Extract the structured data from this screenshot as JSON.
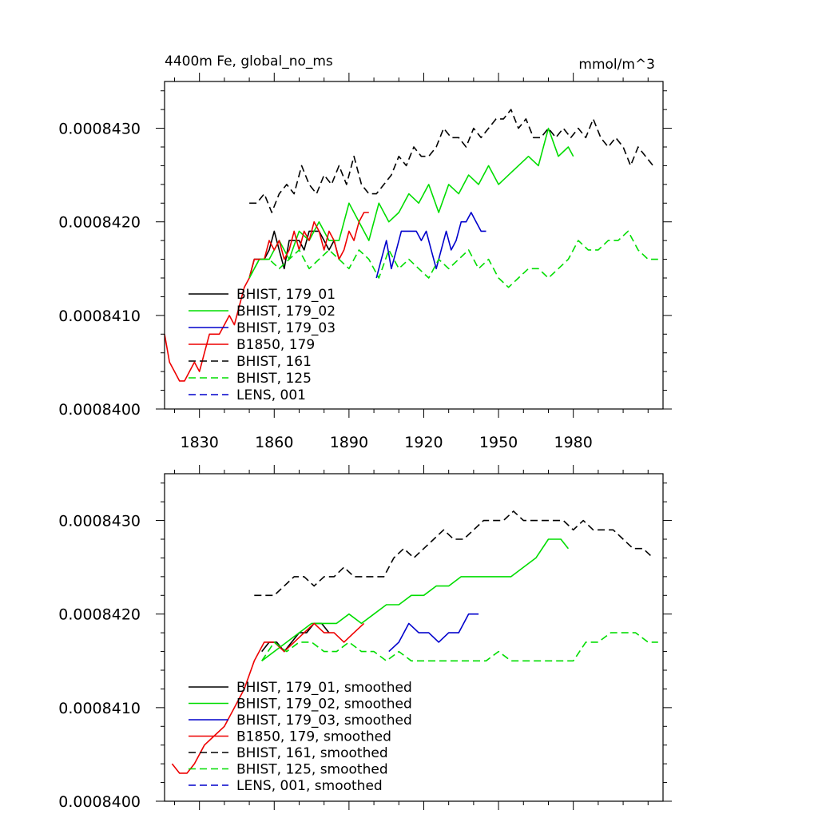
{
  "chart_data": [
    {
      "type": "line",
      "title": "4400m Fe, global_no_ms",
      "units": "mmol/m^3",
      "xlim": [
        1816,
        2016
      ],
      "ylim": [
        0.00084,
        0.0008435
      ],
      "xticks": [
        1830,
        1860,
        1890,
        1920,
        1950,
        1980
      ],
      "xtick_labels": [
        "1830",
        "1860",
        "1890",
        "1920",
        "1950",
        "1980"
      ],
      "yticks": [
        0.00084,
        0.000841,
        0.000842,
        0.000843
      ],
      "ytick_labels": [
        "0.0008400",
        "0.0008410",
        "0.0008420",
        "0.0008430"
      ],
      "series": [
        {
          "name": "BHIST, 179_01",
          "color": "#000000",
          "dash": "solid",
          "x": [
            1850,
            1852,
            1854,
            1856,
            1858,
            1860,
            1862,
            1864,
            1866,
            1868,
            1870,
            1872,
            1874,
            1876,
            1878,
            1880,
            1882,
            1884,
            1886
          ],
          "y": [
            0.0008414,
            0.0008416,
            0.0008416,
            0.0008416,
            0.0008417,
            0.0008419,
            0.0008417,
            0.0008415,
            0.0008418,
            0.0008418,
            0.0008418,
            0.0008417,
            0.0008419,
            0.0008419,
            0.0008419,
            0.0008418,
            0.0008417,
            0.0008418,
            0.0008416
          ]
        },
        {
          "name": "BHIST, 179_02",
          "color": "#00dd00",
          "dash": "solid",
          "x": [
            1850,
            1854,
            1858,
            1862,
            1866,
            1870,
            1874,
            1878,
            1882,
            1886,
            1890,
            1894,
            1898,
            1902,
            1906,
            1910,
            1914,
            1918,
            1922,
            1926,
            1930,
            1934,
            1938,
            1942,
            1946,
            1950,
            1954,
            1958,
            1962,
            1966,
            1970,
            1974,
            1978,
            1980
          ],
          "y": [
            0.0008414,
            0.0008416,
            0.0008416,
            0.0008418,
            0.0008416,
            0.0008419,
            0.0008418,
            0.000842,
            0.0008418,
            0.0008418,
            0.0008422,
            0.000842,
            0.0008418,
            0.0008422,
            0.000842,
            0.0008421,
            0.0008423,
            0.0008422,
            0.0008424,
            0.0008421,
            0.0008424,
            0.0008423,
            0.0008425,
            0.0008424,
            0.0008426,
            0.0008424,
            0.0008425,
            0.0008426,
            0.0008427,
            0.0008426,
            0.000843,
            0.0008427,
            0.0008428,
            0.0008427
          ]
        },
        {
          "name": "BHIST, 179_03",
          "color": "#0000cc",
          "dash": "solid",
          "x": [
            1901,
            1903,
            1905,
            1907,
            1909,
            1911,
            1913,
            1915,
            1917,
            1919,
            1921,
            1923,
            1925,
            1927,
            1929,
            1931,
            1933,
            1935,
            1937,
            1939,
            1941,
            1943,
            1945
          ],
          "y": [
            0.0008414,
            0.0008416,
            0.0008418,
            0.0008415,
            0.0008417,
            0.0008419,
            0.0008419,
            0.0008419,
            0.0008419,
            0.0008418,
            0.0008419,
            0.0008417,
            0.0008415,
            0.0008417,
            0.0008419,
            0.0008417,
            0.0008418,
            0.000842,
            0.000842,
            0.0008421,
            0.000842,
            0.0008419,
            0.0008419
          ]
        },
        {
          "name": "B1850, 179",
          "color": "#ee0000",
          "dash": "solid",
          "x": [
            1816,
            1818,
            1820,
            1822,
            1824,
            1826,
            1828,
            1830,
            1832,
            1834,
            1836,
            1838,
            1840,
            1842,
            1844,
            1846,
            1848,
            1850,
            1852,
            1854,
            1856,
            1858,
            1860,
            1862,
            1864,
            1866,
            1868,
            1870,
            1872,
            1874,
            1876,
            1878,
            1880,
            1882,
            1884,
            1886,
            1888,
            1890,
            1892,
            1894,
            1896,
            1898
          ],
          "y": [
            0.0008408,
            0.0008405,
            0.0008404,
            0.0008403,
            0.0008403,
            0.0008404,
            0.0008405,
            0.0008404,
            0.0008406,
            0.0008408,
            0.0008408,
            0.0008408,
            0.0008409,
            0.000841,
            0.0008409,
            0.0008411,
            0.0008413,
            0.0008414,
            0.0008416,
            0.0008416,
            0.0008416,
            0.0008418,
            0.0008417,
            0.0008418,
            0.0008416,
            0.0008417,
            0.0008419,
            0.0008417,
            0.0008419,
            0.0008418,
            0.000842,
            0.0008419,
            0.0008417,
            0.0008419,
            0.0008418,
            0.0008416,
            0.0008417,
            0.0008419,
            0.0008418,
            0.000842,
            0.0008421,
            0.0008421
          ]
        },
        {
          "name": "BHIST, 161",
          "color": "#000000",
          "dash": "dashed",
          "x": [
            1850,
            1853,
            1856,
            1859,
            1862,
            1865,
            1868,
            1871,
            1874,
            1877,
            1880,
            1883,
            1886,
            1889,
            1892,
            1895,
            1898,
            1901,
            1904,
            1907,
            1910,
            1913,
            1916,
            1919,
            1922,
            1925,
            1928,
            1931,
            1934,
            1937,
            1940,
            1943,
            1946,
            1949,
            1952,
            1955,
            1958,
            1961,
            1964,
            1967,
            1970,
            1973,
            1976,
            1979,
            1982,
            1985,
            1988,
            1991,
            1994,
            1997,
            2000,
            2003,
            2006,
            2009,
            2012
          ],
          "y": [
            0.0008422,
            0.0008422,
            0.0008423,
            0.0008421,
            0.0008423,
            0.0008424,
            0.0008423,
            0.0008426,
            0.0008424,
            0.0008423,
            0.0008425,
            0.0008424,
            0.0008426,
            0.0008424,
            0.0008427,
            0.0008424,
            0.0008423,
            0.0008423,
            0.0008424,
            0.0008425,
            0.0008427,
            0.0008426,
            0.0008428,
            0.0008427,
            0.0008427,
            0.0008428,
            0.000843,
            0.0008429,
            0.0008429,
            0.0008428,
            0.000843,
            0.0008429,
            0.000843,
            0.0008431,
            0.0008431,
            0.0008432,
            0.000843,
            0.0008431,
            0.0008429,
            0.0008429,
            0.000843,
            0.0008429,
            0.000843,
            0.0008429,
            0.000843,
            0.0008429,
            0.0008431,
            0.0008429,
            0.0008428,
            0.0008429,
            0.0008428,
            0.0008426,
            0.0008428,
            0.0008427,
            0.0008426
          ]
        },
        {
          "name": "BHIST, 125",
          "color": "#00dd00",
          "dash": "dashed",
          "x": [
            1850,
            1854,
            1858,
            1862,
            1866,
            1870,
            1874,
            1878,
            1882,
            1886,
            1890,
            1894,
            1898,
            1902,
            1906,
            1910,
            1914,
            1918,
            1922,
            1926,
            1930,
            1934,
            1938,
            1942,
            1946,
            1950,
            1954,
            1958,
            1962,
            1966,
            1970,
            1974,
            1978,
            1982,
            1986,
            1990,
            1994,
            1998,
            2002,
            2006,
            2010,
            2014
          ],
          "y": [
            0.0008414,
            0.0008416,
            0.0008416,
            0.0008415,
            0.0008416,
            0.0008417,
            0.0008415,
            0.0008416,
            0.0008417,
            0.0008416,
            0.0008415,
            0.0008417,
            0.0008416,
            0.0008414,
            0.0008417,
            0.0008415,
            0.0008416,
            0.0008415,
            0.0008414,
            0.0008416,
            0.0008415,
            0.0008416,
            0.0008417,
            0.0008415,
            0.0008416,
            0.0008414,
            0.0008413,
            0.0008414,
            0.0008415,
            0.0008415,
            0.0008414,
            0.0008415,
            0.0008416,
            0.0008418,
            0.0008417,
            0.0008417,
            0.0008418,
            0.0008418,
            0.0008419,
            0.0008417,
            0.0008416,
            0.0008416
          ]
        }
      ],
      "legend_extra": [
        {
          "name": "LENS, 001",
          "color": "#0000cc",
          "dash": "dashed"
        }
      ]
    },
    {
      "type": "line",
      "title": "",
      "units": "",
      "xlim": [
        1816,
        2016
      ],
      "ylim": [
        0.00084,
        0.0008435
      ],
      "xticks": [
        1830,
        1860,
        1890,
        1920,
        1950,
        1980
      ],
      "xtick_labels": [],
      "yticks": [
        0.00084,
        0.000841,
        0.000842,
        0.000843
      ],
      "ytick_labels": [
        "0.0008400",
        "0.0008410",
        "0.0008420",
        "0.0008430"
      ],
      "series": [
        {
          "name": "BHIST, 179_01, smoothed",
          "color": "#000000",
          "dash": "solid",
          "x": [
            1855,
            1858,
            1861,
            1864,
            1867,
            1870,
            1873,
            1876,
            1879,
            1882
          ],
          "y": [
            0.0008416,
            0.0008417,
            0.0008417,
            0.0008416,
            0.0008417,
            0.0008418,
            0.0008418,
            0.0008419,
            0.0008419,
            0.0008418
          ]
        },
        {
          "name": "BHIST, 179_02, smoothed",
          "color": "#00dd00",
          "dash": "solid",
          "x": [
            1855,
            1860,
            1865,
            1870,
            1875,
            1880,
            1885,
            1890,
            1895,
            1900,
            1905,
            1910,
            1915,
            1920,
            1925,
            1930,
            1935,
            1940,
            1945,
            1950,
            1955,
            1960,
            1965,
            1970,
            1975,
            1978
          ],
          "y": [
            0.0008415,
            0.0008416,
            0.0008417,
            0.0008418,
            0.0008419,
            0.0008419,
            0.0008419,
            0.000842,
            0.0008419,
            0.000842,
            0.0008421,
            0.0008421,
            0.0008422,
            0.0008422,
            0.0008423,
            0.0008423,
            0.0008424,
            0.0008424,
            0.0008424,
            0.0008424,
            0.0008424,
            0.0008425,
            0.0008426,
            0.0008428,
            0.0008428,
            0.0008427
          ]
        },
        {
          "name": "BHIST, 179_03, smoothed",
          "color": "#0000cc",
          "dash": "solid",
          "x": [
            1906,
            1910,
            1914,
            1918,
            1922,
            1926,
            1930,
            1934,
            1938,
            1942
          ],
          "y": [
            0.0008416,
            0.0008417,
            0.0008419,
            0.0008418,
            0.0008418,
            0.0008417,
            0.0008418,
            0.0008418,
            0.000842,
            0.000842
          ]
        },
        {
          "name": "B1850, 179, smoothed",
          "color": "#ee0000",
          "dash": "solid",
          "x": [
            1819,
            1822,
            1825,
            1828,
            1832,
            1836,
            1840,
            1844,
            1848,
            1852,
            1856,
            1860,
            1864,
            1868,
            1872,
            1876,
            1880,
            1884,
            1888,
            1892,
            1896
          ],
          "y": [
            0.0008404,
            0.0008403,
            0.0008403,
            0.0008404,
            0.0008406,
            0.0008407,
            0.0008408,
            0.000841,
            0.0008412,
            0.0008415,
            0.0008417,
            0.0008417,
            0.0008416,
            0.0008417,
            0.0008418,
            0.0008419,
            0.0008418,
            0.0008418,
            0.0008417,
            0.0008418,
            0.0008419
          ]
        },
        {
          "name": "BHIST, 161, smoothed",
          "color": "#000000",
          "dash": "dashed",
          "x": [
            1852,
            1856,
            1860,
            1864,
            1868,
            1872,
            1876,
            1880,
            1884,
            1888,
            1892,
            1896,
            1900,
            1904,
            1908,
            1912,
            1916,
            1920,
            1924,
            1928,
            1932,
            1936,
            1940,
            1944,
            1948,
            1952,
            1956,
            1960,
            1964,
            1968,
            1972,
            1976,
            1980,
            1984,
            1988,
            1992,
            1996,
            2000,
            2004,
            2008,
            2012
          ],
          "y": [
            0.0008422,
            0.0008422,
            0.0008422,
            0.0008423,
            0.0008424,
            0.0008424,
            0.0008423,
            0.0008424,
            0.0008424,
            0.0008425,
            0.0008424,
            0.0008424,
            0.0008424,
            0.0008424,
            0.0008426,
            0.0008427,
            0.0008426,
            0.0008427,
            0.0008428,
            0.0008429,
            0.0008428,
            0.0008428,
            0.0008429,
            0.000843,
            0.000843,
            0.000843,
            0.0008431,
            0.000843,
            0.000843,
            0.000843,
            0.000843,
            0.000843,
            0.0008429,
            0.000843,
            0.0008429,
            0.0008429,
            0.0008429,
            0.0008428,
            0.0008427,
            0.0008427,
            0.0008426
          ]
        },
        {
          "name": "BHIST, 125, smoothed",
          "color": "#00dd00",
          "dash": "dashed",
          "x": [
            1855,
            1860,
            1865,
            1870,
            1875,
            1880,
            1885,
            1890,
            1895,
            1900,
            1905,
            1910,
            1915,
            1920,
            1925,
            1930,
            1935,
            1940,
            1945,
            1950,
            1955,
            1960,
            1965,
            1970,
            1975,
            1980,
            1985,
            1990,
            1995,
            2000,
            2005,
            2010,
            2014
          ],
          "y": [
            0.0008415,
            0.0008417,
            0.0008416,
            0.0008417,
            0.0008417,
            0.0008416,
            0.0008416,
            0.0008417,
            0.0008416,
            0.0008416,
            0.0008415,
            0.0008416,
            0.0008415,
            0.0008415,
            0.0008415,
            0.0008415,
            0.0008415,
            0.0008415,
            0.0008415,
            0.0008416,
            0.0008415,
            0.0008415,
            0.0008415,
            0.0008415,
            0.0008415,
            0.0008415,
            0.0008417,
            0.0008417,
            0.0008418,
            0.0008418,
            0.0008418,
            0.0008417,
            0.0008417
          ]
        }
      ],
      "legend_extra": [
        {
          "name": "LENS, 001, smoothed",
          "color": "#0000cc",
          "dash": "dashed"
        }
      ]
    }
  ]
}
